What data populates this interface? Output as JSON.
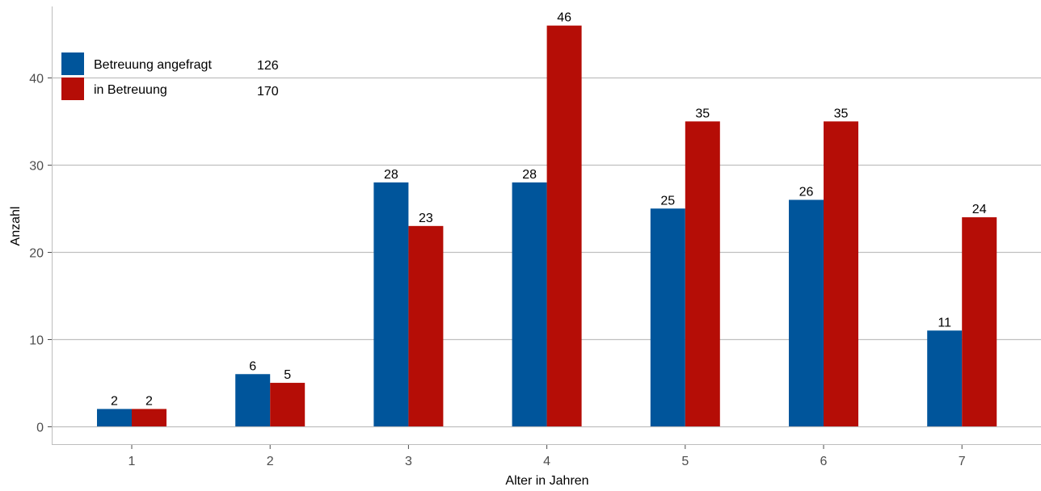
{
  "chart_data": {
    "type": "bar",
    "xlabel": "Alter in Jahren",
    "ylabel": "Anzahl",
    "categories": [
      "1",
      "2",
      "3",
      "4",
      "5",
      "6",
      "7"
    ],
    "ylim": [
      0,
      47
    ],
    "yticks": [
      0,
      10,
      20,
      30,
      40
    ],
    "grid": "horizontal",
    "legend_position": "top-left",
    "series": [
      {
        "name": "Betreuung angefragt",
        "total": "126",
        "color": "#00559B",
        "values": [
          2,
          6,
          28,
          28,
          25,
          26,
          11
        ]
      },
      {
        "name": "in Betreuung",
        "total": "170",
        "color": "#B50D06",
        "values": [
          2,
          5,
          23,
          46,
          35,
          35,
          24
        ]
      }
    ]
  }
}
